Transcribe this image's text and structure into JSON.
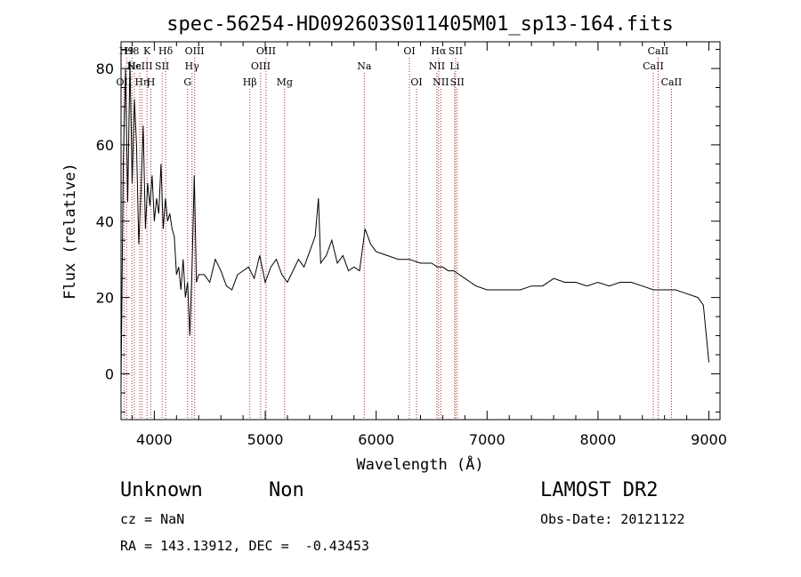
{
  "colors": {
    "line": "#000000",
    "marker": "#a52a2a",
    "background": "#ffffff"
  },
  "chart_data": {
    "type": "line",
    "title": "spec-56254-HD092603S011405M01_sp13-164.fits",
    "xlabel": "Wavelength (Å)",
    "ylabel": "Flux (relative)",
    "xlim": [
      3700,
      9100
    ],
    "ylim": [
      -12,
      87
    ],
    "xticks": [
      4000,
      5000,
      6000,
      7000,
      8000,
      9000
    ],
    "yticks": [
      0,
      20,
      40,
      60,
      80
    ],
    "grid": false,
    "legend": "none",
    "series": [
      {
        "x": [
          3700,
          3720,
          3740,
          3760,
          3780,
          3800,
          3820,
          3840,
          3860,
          3880,
          3900,
          3920,
          3940,
          3960,
          3980,
          4000,
          4020,
          4040,
          4060,
          4080,
          4100,
          4120,
          4140,
          4160,
          4180,
          4200,
          4220,
          4240,
          4260,
          4280,
          4300,
          4320,
          4340,
          4360,
          4380,
          4400,
          4450,
          4500,
          4550,
          4600,
          4650,
          4700,
          4750,
          4800,
          4850,
          4900,
          4950,
          5000,
          5050,
          5100,
          5150,
          5200,
          5250,
          5300,
          5350,
          5400,
          5450,
          5480,
          5500,
          5550,
          5600,
          5650,
          5700,
          5750,
          5800,
          5850,
          5900,
          5950,
          6000,
          6100,
          6200,
          6300,
          6400,
          6500,
          6550,
          6600,
          6650,
          6700,
          6750,
          6800,
          6850,
          6900,
          7000,
          7100,
          7200,
          7300,
          7400,
          7500,
          7600,
          7700,
          7800,
          7900,
          8000,
          8100,
          8200,
          8300,
          8400,
          8500,
          8600,
          8700,
          8800,
          8900,
          8950,
          9000
        ],
        "y": [
          -3,
          55,
          80,
          45,
          82,
          50,
          72,
          60,
          34,
          48,
          65,
          38,
          50,
          44,
          52,
          40,
          46,
          42,
          55,
          38,
          46,
          40,
          42,
          38,
          36,
          26,
          28,
          22,
          30,
          20,
          24,
          10,
          28,
          52,
          24,
          26,
          26,
          24,
          30,
          27,
          23,
          22,
          26,
          27,
          28,
          25,
          31,
          24,
          28,
          30,
          26,
          24,
          27,
          30,
          28,
          32,
          36,
          46,
          29,
          31,
          35,
          29,
          31,
          27,
          28,
          27,
          38,
          34,
          32,
          31,
          30,
          30,
          29,
          29,
          28,
          28,
          27,
          27,
          26,
          25,
          24,
          23,
          22,
          22,
          22,
          22,
          23,
          23,
          25,
          24,
          24,
          23,
          24,
          23,
          24,
          24,
          23,
          22,
          22,
          22,
          21,
          20,
          18,
          3
        ]
      }
    ],
    "line_markers": [
      {
        "wl": 3727,
        "label": "OII",
        "row": 3
      },
      {
        "wl": 3750,
        "label": "H9",
        "row": 1
      },
      {
        "wl": 3798,
        "label": "H8",
        "row": 1
      },
      {
        "wl": 3820,
        "label": "Hε",
        "row": 2
      },
      {
        "wl": 3869,
        "label": "NeIII",
        "row": 2
      },
      {
        "wl": 3889,
        "label": "Hη",
        "row": 3
      },
      {
        "wl": 3934,
        "label": "K",
        "row": 1
      },
      {
        "wl": 3969,
        "label": "H",
        "row": 3
      },
      {
        "wl": 4070,
        "label": "SII",
        "row": 2
      },
      {
        "wl": 4102,
        "label": "Hδ",
        "row": 1
      },
      {
        "wl": 4300,
        "label": "G",
        "row": 3
      },
      {
        "wl": 4340,
        "label": "Hγ",
        "row": 2
      },
      {
        "wl": 4363,
        "label": "OIII",
        "row": 1
      },
      {
        "wl": 4861,
        "label": "Hβ",
        "row": 3
      },
      {
        "wl": 4959,
        "label": "OIII",
        "row": 2
      },
      {
        "wl": 5007,
        "label": "OIII",
        "row": 1
      },
      {
        "wl": 5175,
        "label": "Mg",
        "row": 3
      },
      {
        "wl": 5893,
        "label": "Na",
        "row": 2
      },
      {
        "wl": 6300,
        "label": "OI",
        "row": 1
      },
      {
        "wl": 6364,
        "label": "OI",
        "row": 3
      },
      {
        "wl": 6548,
        "label": "NII",
        "row": 2
      },
      {
        "wl": 6563,
        "label": "Hα",
        "row": 1
      },
      {
        "wl": 6583,
        "label": "NII",
        "row": 3
      },
      {
        "wl": 6707,
        "label": "Li",
        "row": 2
      },
      {
        "wl": 6716,
        "label": "SII",
        "row": 1
      },
      {
        "wl": 6731,
        "label": "SII",
        "row": 3
      },
      {
        "wl": 8498,
        "label": "CaII",
        "row": 2
      },
      {
        "wl": 8542,
        "label": "CaII",
        "row": 1
      },
      {
        "wl": 8662,
        "label": "CaII",
        "row": 3
      }
    ]
  },
  "info": {
    "class": "Unknown",
    "subclass": "Non",
    "survey": "LAMOST DR2",
    "cz": "cz = NaN",
    "obs_date": "Obs-Date: 20121122",
    "coords": "RA = 143.13912, DEC =  -0.43453"
  }
}
